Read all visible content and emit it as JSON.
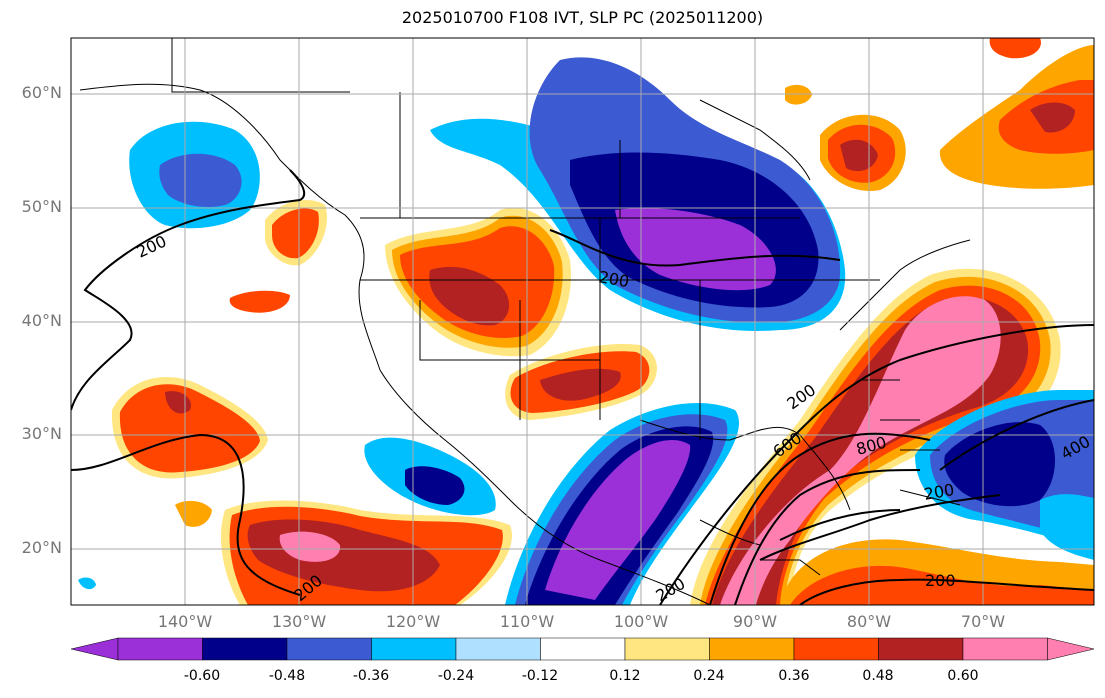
{
  "title": "2025010700 F108 IVT, SLP PC (2025011200)",
  "lat_labels": [
    "60°N",
    "50°N",
    "40°N",
    "30°N",
    "20°N"
  ],
  "lon_labels": [
    "140°W",
    "130°W",
    "120°W",
    "110°W",
    "100°W",
    "90°W",
    "80°W",
    "70°W"
  ],
  "colorbar": {
    "ticks": [
      "-0.60",
      "-0.48",
      "-0.36",
      "-0.24",
      "-0.12",
      "0.12",
      "0.24",
      "0.36",
      "0.48",
      "0.60"
    ],
    "colors": [
      "#9b30d9",
      "#00008b",
      "#3c5ad2",
      "#00bfff",
      "#b0e0ff",
      "#ffffff",
      "#ffe680",
      "#ffa500",
      "#ff4500",
      "#b22222",
      "#ff80b0"
    ]
  },
  "contour_labels": [
    "200",
    "200",
    "200",
    "600",
    "800",
    "400",
    "200",
    "200",
    "200",
    "200"
  ]
}
